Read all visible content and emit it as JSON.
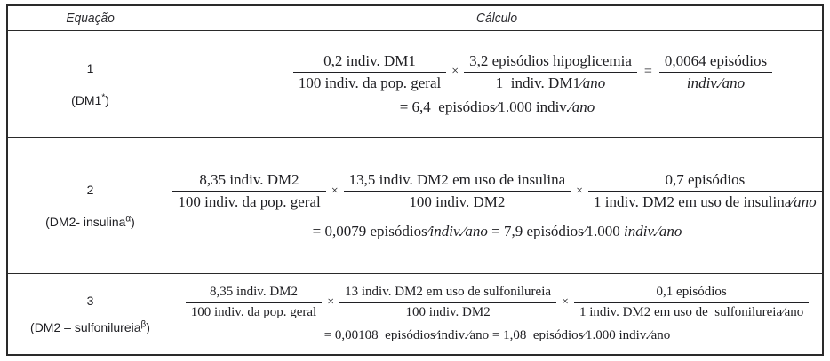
{
  "header": {
    "equation_col": "Equação",
    "calc_col": "Cálculo"
  },
  "rows": [
    {
      "number": "1",
      "label": {
        "pre": "(DM1",
        "sup": "*",
        "post": ")"
      },
      "formula": [
        {
          "op": "",
          "num": [
            {
              "t": "0,2 indiv. DM1",
              "i": false
            }
          ],
          "den": [
            {
              "t": "100 indiv. da pop. geral",
              "i": false
            }
          ]
        },
        {
          "op": "×",
          "num": [
            {
              "t": "3,2 episódios hipoglicemia",
              "i": false
            }
          ],
          "den": [
            {
              "t": "1 indiv. DM1⁄",
              "i": false
            },
            {
              "t": "ano",
              "i": true
            }
          ]
        },
        {
          "op": "=",
          "num": [
            {
              "t": "0,0064 episódios",
              "i": false
            }
          ],
          "den": [
            {
              "t": "indiv.⁄ano",
              "i": true
            }
          ]
        }
      ],
      "result": [
        {
          "t": "= 6,4 episódios⁄1.000 indiv.⁄",
          "i": false
        },
        {
          "t": "ano",
          "i": true
        }
      ]
    },
    {
      "number": "2",
      "label": {
        "pre": "(DM2- insulina",
        "sup": "α",
        "post": ")"
      },
      "formula": [
        {
          "op": "",
          "num": [
            {
              "t": "8,35 indiv. DM2",
              "i": false
            }
          ],
          "den": [
            {
              "t": "100 indiv. da pop. geral",
              "i": false
            }
          ]
        },
        {
          "op": "×",
          "num": [
            {
              "t": "13,5 indiv. DM2 em uso de insulina",
              "i": false
            }
          ],
          "den": [
            {
              "t": "100 indiv. DM2",
              "i": false
            }
          ]
        },
        {
          "op": "×",
          "num": [
            {
              "t": "0,7 episódios",
              "i": false
            }
          ],
          "den": [
            {
              "t": "1 indiv. DM2 em uso de insulina⁄",
              "i": false
            },
            {
              "t": "ano",
              "i": true
            }
          ]
        }
      ],
      "result": [
        {
          "t": "= 0,0079 episódios⁄",
          "i": false
        },
        {
          "t": "indiv.⁄ano",
          "i": true
        },
        {
          "t": " = 7,9 episódios⁄1.000 ",
          "i": false
        },
        {
          "t": "indiv.⁄ano",
          "i": true
        }
      ]
    },
    {
      "number": "3",
      "label": {
        "pre": "(DM2 – sulfonilureia",
        "sup": "β",
        "post": ")"
      },
      "formula": [
        {
          "op": "",
          "num": [
            {
              "t": "8,35 indiv. DM2",
              "i": false
            }
          ],
          "den": [
            {
              "t": "100 indiv. da pop. geral",
              "i": false
            }
          ]
        },
        {
          "op": "×",
          "num": [
            {
              "t": "13 indiv. DM2 em uso de sulfonilureia",
              "i": false
            }
          ],
          "den": [
            {
              "t": "100 indiv. DM2",
              "i": false
            }
          ]
        },
        {
          "op": "×",
          "num": [
            {
              "t": "0,1 episódios",
              "i": false
            }
          ],
          "den": [
            {
              "t": "1 indiv. DM2 em uso de sulfonilureia⁄ano",
              "i": false
            }
          ]
        }
      ],
      "result": [
        {
          "t": "= 0,00108 episódios⁄indiv.⁄ano = 1,08 episódios⁄1.000 indiv.⁄ano",
          "i": false
        }
      ]
    }
  ]
}
